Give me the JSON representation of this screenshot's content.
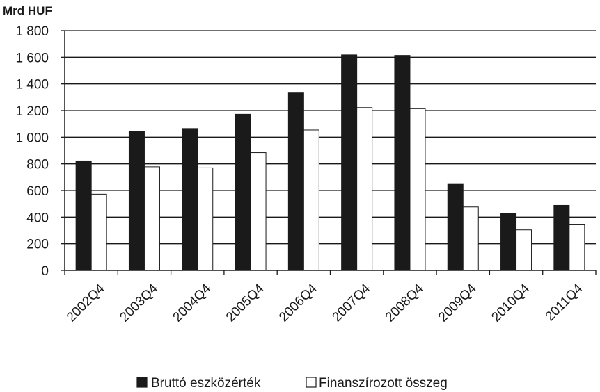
{
  "chart_data": {
    "type": "bar",
    "unit_label": "Mrd  HUF",
    "categories": [
      "2002Q4",
      "2003Q4",
      "2004Q4",
      "2005Q4",
      "2006Q4",
      "2007Q4",
      "2008Q4",
      "2009Q4",
      "2010Q4",
      "2011Q4"
    ],
    "series": [
      {
        "name": "Bruttó eszközérték",
        "color": "#1a1a1a",
        "values": [
          822,
          1042,
          1065,
          1172,
          1332,
          1618,
          1614,
          646,
          430,
          488
        ]
      },
      {
        "name": "Finanszírozott összeg",
        "color": "#ffffff",
        "values": [
          572,
          778,
          770,
          884,
          1054,
          1222,
          1214,
          476,
          304,
          342
        ]
      }
    ],
    "ylim": [
      0,
      1800
    ],
    "yticks": [
      0,
      200,
      400,
      600,
      800,
      1000,
      1200,
      1400,
      1600,
      1800
    ],
    "ytick_labels": [
      "0",
      "200",
      "400",
      "600",
      "800",
      "1 000",
      "1 200",
      "1 400",
      "1 600",
      "1 800"
    ],
    "grid": true,
    "legend_position": "bottom"
  }
}
